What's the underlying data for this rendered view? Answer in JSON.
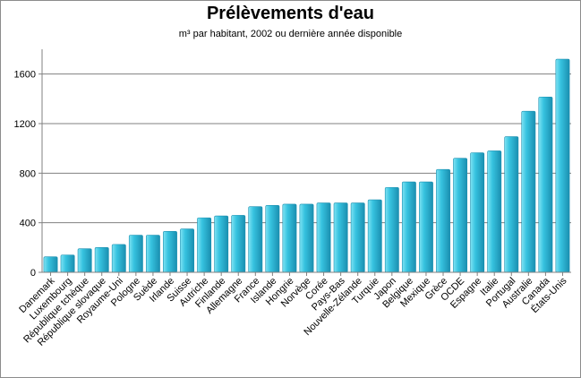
{
  "chart_data": {
    "type": "bar",
    "title": "Prélèvements d'eau",
    "subtitle": "m³ par habitant, 2002 ou dernière année disponible",
    "xlabel": "",
    "ylabel": "",
    "ylim": [
      0,
      1800
    ],
    "yticks": [
      "0",
      "400",
      "800",
      "1200",
      "1600"
    ],
    "grid": true,
    "legend": "none",
    "colors": {
      "bar_light": "#7fe3f3",
      "bar_mid": "#37c3e0",
      "bar_dark": "#1a8fb0",
      "grid": "#808080",
      "axis": "#808080"
    },
    "categories": [
      "Danemark",
      "Luxembourg",
      "République tchèque",
      "République slovaque",
      "Royaume-Uni",
      "Pologne",
      "Suède",
      "Irlande",
      "Suisse",
      "Autriche",
      "Finlande",
      "Allemagne",
      "France",
      "Islande",
      "Hongrie",
      "Norvège",
      "Corée",
      "Pays-Bas",
      "Nouvelle-Zélande",
      "Turquie",
      "Japon",
      "Belgique",
      "Mexique",
      "Grèce",
      "OCDE",
      "Espagne",
      "Italie",
      "Portugal",
      "Australie",
      "Canada",
      "États-Unis"
    ],
    "values": [
      125,
      140,
      190,
      200,
      225,
      300,
      300,
      330,
      350,
      440,
      455,
      460,
      530,
      540,
      550,
      550,
      560,
      560,
      560,
      585,
      685,
      730,
      730,
      830,
      920,
      965,
      980,
      1095,
      1300,
      1415,
      1720
    ]
  }
}
